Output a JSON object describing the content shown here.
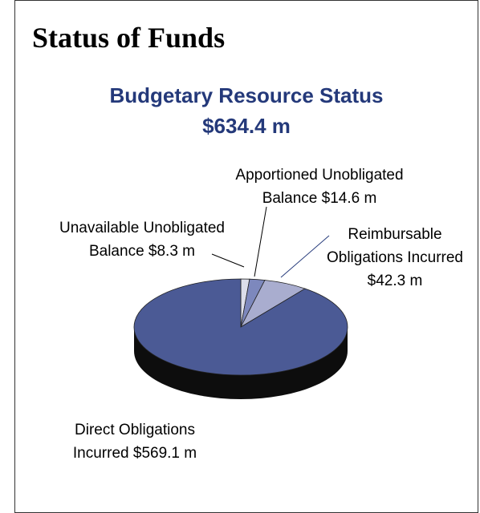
{
  "heading": "Status of Funds",
  "chart_data": {
    "type": "pie",
    "title": "Budgetary Resource Status",
    "subtitle": "$634.4 m",
    "categories": [
      "Unavailable Unobligated Balance",
      "Apportioned Unobligated Balance",
      "Reimbursable Obligations Incurred",
      "Direct Obligations Incurred"
    ],
    "values": [
      8.3,
      14.6,
      42.3,
      569.1
    ],
    "value_labels": [
      "$8.3 m",
      "$14.6 m",
      "$42.3 m",
      "$569.1 m"
    ],
    "colors": [
      "#dcdeea",
      "#7d88bd",
      "#a9adcf",
      "#4b5a95"
    ]
  }
}
